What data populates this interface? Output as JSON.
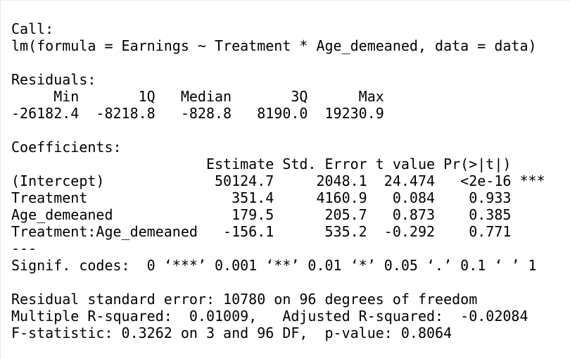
{
  "window": {
    "background_color": "#ffffff",
    "text_color": "#000000",
    "border_color": "#e4e4e4"
  },
  "output": {
    "call": {
      "header": "Call:",
      "formula_line": "lm(formula = Earnings ~ Treatment * Age_demeaned, data = data)",
      "formula": "Earnings ~ Treatment * Age_demeaned",
      "data_arg": "data"
    },
    "residuals": {
      "header": "Residuals:",
      "columns": [
        "Min",
        "1Q",
        "Median",
        "3Q",
        "Max"
      ],
      "values": [
        "-26182.4",
        "-8218.8",
        "-828.8",
        "8190.0",
        "19230.9"
      ],
      "columns_line": "     Min       1Q   Median       3Q      Max",
      "values_line": "-26182.4  -8218.8   -828.8   8190.0  19230.9"
    },
    "coefficients": {
      "header": "Coefficients:",
      "columns": [
        "Estimate",
        "Std. Error",
        "t value",
        "Pr(>|t|)"
      ],
      "columns_line": "                       Estimate Std. Error t value Pr(>|t|)",
      "rows": [
        {
          "term": "(Intercept)",
          "estimate": "50124.7",
          "std_error": "2048.1",
          "t_value": "24.474",
          "p_value": "<2e-16",
          "signif": "***",
          "line": "(Intercept)             50124.7     2048.1  24.474   <2e-16 ***"
        },
        {
          "term": "Treatment",
          "estimate": "351.4",
          "std_error": "4160.9",
          "t_value": "0.084",
          "p_value": "0.933",
          "signif": "",
          "line": "Treatment                 351.4     4160.9   0.084    0.933"
        },
        {
          "term": "Age_demeaned",
          "estimate": "179.5",
          "std_error": "205.7",
          "t_value": "0.873",
          "p_value": "0.385",
          "signif": "",
          "line": "Age_demeaned              179.5      205.7   0.873    0.385"
        },
        {
          "term": "Treatment:Age_demeaned",
          "estimate": "-156.1",
          "std_error": "535.2",
          "t_value": "-0.292",
          "p_value": "0.771",
          "signif": "",
          "line": "Treatment:Age_demeaned   -156.1      535.2  -0.292    0.771"
        }
      ]
    },
    "separator_line": "---",
    "signif_codes_line": "Signif. codes:  0 ‘***’ 0.001 ‘**’ 0.01 ‘*’ 0.05 ‘.’ 0.1 ‘ ’ 1",
    "residual_se_line": "Residual standard error: 10780 on 96 degrees of freedom",
    "residual_se": "10780",
    "residual_df": "96",
    "r_squared_line": "Multiple R-squared:  0.01009,   Adjusted R-squared:  -0.02084",
    "multiple_r_squared": "0.01009",
    "adjusted_r_squared": "-0.02084",
    "f_statistic_line": "F-statistic: 0.3262 on 3 and 96 DF,  p-value: 0.8064",
    "f_statistic": "0.3262",
    "f_df": "3 and 96",
    "p_value": "0.8064"
  }
}
